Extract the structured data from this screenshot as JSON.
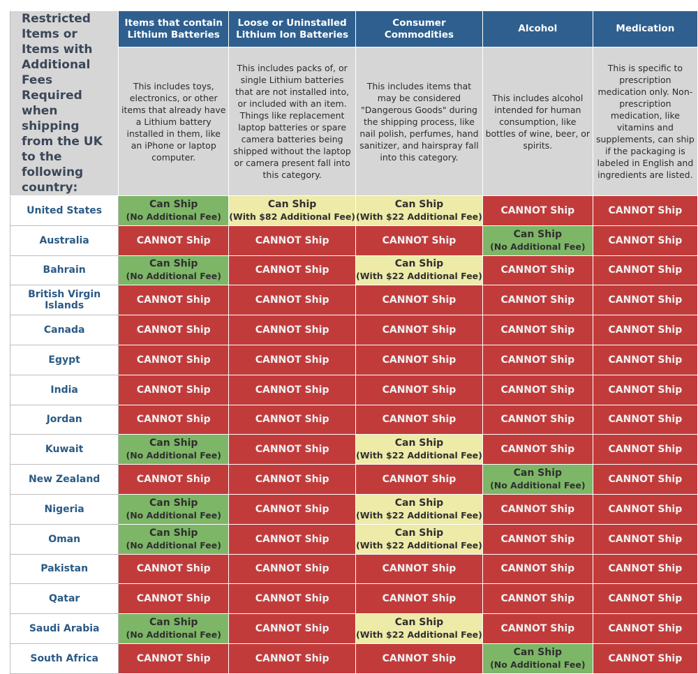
{
  "corner_title": "Restricted Items or Items with Additional Fees Required when shipping from the UK to the following country:",
  "columns": [
    {
      "header": "Items that contain Lithium Batteries",
      "description": "This includes toys, electronics, or other items that already have a Lithium battery installed in them, like an iPhone or laptop computer."
    },
    {
      "header": "Loose or Uninstalled Lithium Ion Batteries",
      "description": "This includes packs of, or single Lithium batteries that are not installed into, or included with an item. Things like replacement laptop batteries or spare camera batteries being shipped without the laptop or camera present fall into this category."
    },
    {
      "header": "Consumer Commodities",
      "description": "This includes items that may be considered \"Dangerous Goods\" during the shipping process, like nail polish, perfumes, hand sanitizer, and hairspray fall into this category."
    },
    {
      "header": "Alcohol",
      "description": "This includes alcohol intended for human consumption, like bottles of wine, beer, or spirits."
    },
    {
      "header": "Medication",
      "description": "This is specific to prescription medication only. Non-prescription medication, like vitamins and supplements, can ship if the packaging is labeled in English and ingredients are listed."
    }
  ],
  "labels": {
    "cannot": "CANNOT Ship",
    "can": "Can Ship",
    "no_fee": "(No Additional Fee)",
    "fee_22": "(With $22 Additional Fee)",
    "fee_82": "(With $82 Additional Fee)"
  },
  "colors": {
    "header_blue": "#2e5f8f",
    "grey": "#d6d6d6",
    "red": "#c23b3b",
    "green": "#7db667",
    "yellow": "#eeeaa8",
    "country_text": "#2b5a86"
  },
  "rows": [
    {
      "country": "United States",
      "cells": [
        "yes",
        "fee_82",
        "fee_22",
        "no",
        "no"
      ]
    },
    {
      "country": "Australia",
      "cells": [
        "no",
        "no",
        "no",
        "yes",
        "no"
      ]
    },
    {
      "country": "Bahrain",
      "cells": [
        "yes",
        "no",
        "fee_22",
        "no",
        "no"
      ]
    },
    {
      "country": "British Virgin Islands",
      "cells": [
        "no",
        "no",
        "no",
        "no",
        "no"
      ]
    },
    {
      "country": "Canada",
      "cells": [
        "no",
        "no",
        "no",
        "no",
        "no"
      ]
    },
    {
      "country": "Egypt",
      "cells": [
        "no",
        "no",
        "no",
        "no",
        "no"
      ]
    },
    {
      "country": "India",
      "cells": [
        "no",
        "no",
        "no",
        "no",
        "no"
      ]
    },
    {
      "country": "Jordan",
      "cells": [
        "no",
        "no",
        "no",
        "no",
        "no"
      ]
    },
    {
      "country": "Kuwait",
      "cells": [
        "yes",
        "no",
        "fee_22",
        "no",
        "no"
      ]
    },
    {
      "country": "New Zealand",
      "cells": [
        "no",
        "no",
        "no",
        "yes",
        "no"
      ]
    },
    {
      "country": "Nigeria",
      "cells": [
        "yes",
        "no",
        "fee_22",
        "no",
        "no"
      ]
    },
    {
      "country": "Oman",
      "cells": [
        "yes",
        "no",
        "fee_22",
        "no",
        "no"
      ]
    },
    {
      "country": "Pakistan",
      "cells": [
        "no",
        "no",
        "no",
        "no",
        "no"
      ]
    },
    {
      "country": "Qatar",
      "cells": [
        "no",
        "no",
        "no",
        "no",
        "no"
      ]
    },
    {
      "country": "Saudi Arabia",
      "cells": [
        "yes",
        "no",
        "fee_22",
        "no",
        "no"
      ]
    },
    {
      "country": "South Africa",
      "cells": [
        "no",
        "no",
        "no",
        "yes",
        "no"
      ]
    }
  ]
}
